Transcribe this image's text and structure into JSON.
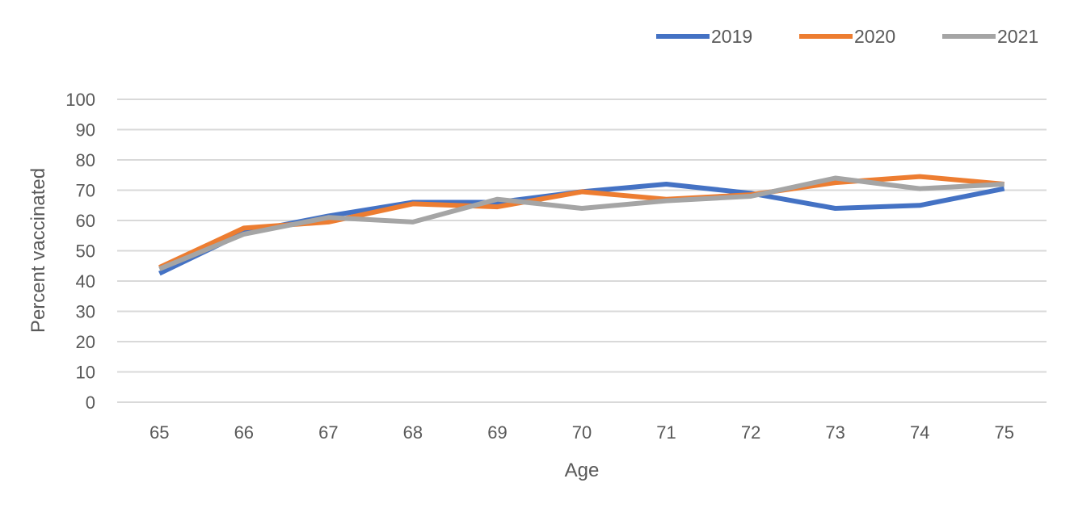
{
  "chart_data": {
    "type": "line",
    "title": "",
    "xlabel": "Age",
    "ylabel": "Percent vaccinated",
    "x": [
      "65",
      "66",
      "67",
      "68",
      "69",
      "70",
      "71",
      "72",
      "73",
      "74",
      "75"
    ],
    "ylim": [
      0,
      100
    ],
    "yticks": [
      "0",
      "10",
      "20",
      "30",
      "40",
      "50",
      "60",
      "70",
      "80",
      "90",
      "100"
    ],
    "grid": true,
    "legend_position": "top-right",
    "series": [
      {
        "name": "2019",
        "color": "#4472C4",
        "values": [
          42.5,
          56,
          61.5,
          66,
          66,
          69.5,
          72,
          69,
          64,
          65,
          70.5
        ]
      },
      {
        "name": "2020",
        "color": "#ED7D31",
        "values": [
          44.5,
          57.5,
          59.5,
          65.5,
          64.5,
          69.5,
          67,
          68.5,
          72.5,
          74.5,
          72
        ]
      },
      {
        "name": "2021",
        "color": "#A5A5A5",
        "values": [
          44,
          55.5,
          61,
          59.5,
          67,
          64,
          66.5,
          68,
          74,
          70.5,
          72
        ]
      }
    ]
  }
}
